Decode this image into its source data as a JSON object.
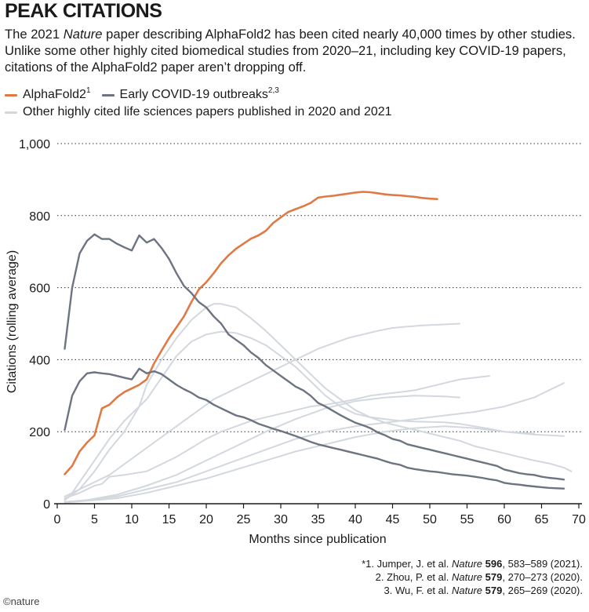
{
  "header": {
    "title": "PEAK CITATIONS",
    "subtitle_before": "The 2021 ",
    "subtitle_italic": "Nature",
    "subtitle_after": " paper describing AlphaFold2 has been cited nearly 40,000 times by other studies. Unlike some other highly cited biomedical studies from 2020–21, including key COVID-19 papers, citations of the AlphaFold2 paper aren’t dropping off."
  },
  "legend": {
    "alphafold": {
      "label": "AlphaFold2",
      "sup": "1"
    },
    "covid": {
      "label": "Early COVID-19 outbreaks",
      "sup": "2,3"
    },
    "other": {
      "label": "Other highly cited life sciences papers published in 2020 and 2021"
    }
  },
  "colors": {
    "alphafold": "#e07a45",
    "covid": "#6d7481",
    "other": "#d3d8de",
    "grid": "#333333",
    "axis": "#1a1a1a"
  },
  "chart_data": {
    "type": "line",
    "xlabel": "Months since publication",
    "ylabel": "Citations (rolling average)",
    "xlim": [
      0,
      70
    ],
    "ylim": [
      0,
      1000
    ],
    "xticks": [
      0,
      5,
      10,
      15,
      20,
      25,
      30,
      35,
      40,
      45,
      50,
      55,
      60,
      65,
      70
    ],
    "yticks": [
      0,
      200,
      400,
      600,
      800,
      1000
    ],
    "ytick_labels": [
      "0",
      "200",
      "400",
      "600",
      "800",
      "1,000"
    ],
    "grid": "horizontal dotted",
    "series": [
      {
        "name": "Other highly cited life sciences papers published in 2020 and 2021",
        "group": "other",
        "x": [
          1,
          3,
          5,
          7,
          9,
          11,
          13,
          15,
          17,
          19,
          21,
          23,
          25,
          27,
          29,
          31,
          33,
          35,
          37,
          39,
          41,
          43,
          45,
          47,
          49,
          51,
          53,
          54
        ],
        "y": [
          20,
          40,
          60,
          80,
          110,
          140,
          170,
          200,
          230,
          260,
          290,
          310,
          330,
          350,
          370,
          390,
          410,
          430,
          445,
          460,
          470,
          480,
          488,
          492,
          495,
          497,
          499,
          500
        ]
      },
      {
        "name": "Other highly cited life sciences papers published in 2020 and 2021",
        "group": "other",
        "x": [
          1,
          2,
          3,
          5,
          7,
          9,
          11,
          12,
          14,
          16,
          18,
          20,
          21,
          22,
          24,
          26,
          28,
          30,
          32,
          34,
          36,
          38,
          40,
          42,
          44,
          46,
          48,
          50,
          52,
          54,
          56,
          58,
          60,
          62,
          64,
          66,
          68,
          69
        ],
        "y": [
          10,
          30,
          60,
          120,
          180,
          230,
          270,
          330,
          400,
          460,
          510,
          545,
          555,
          555,
          545,
          515,
          480,
          440,
          400,
          360,
          320,
          290,
          260,
          240,
          225,
          215,
          205,
          195,
          185,
          175,
          160,
          150,
          140,
          130,
          120,
          112,
          100,
          90
        ]
      },
      {
        "name": "Other highly cited life sciences papers published in 2020 and 2021",
        "group": "other",
        "x": [
          1,
          3,
          5,
          7,
          9,
          11,
          12,
          14,
          16,
          18,
          20,
          22,
          24,
          26,
          28,
          30,
          32,
          34,
          36,
          38,
          40,
          42,
          44,
          46,
          48,
          50,
          52,
          54,
          56,
          58,
          60,
          62,
          64,
          66,
          68
        ],
        "y": [
          10,
          40,
          90,
          150,
          200,
          270,
          290,
          350,
          410,
          450,
          470,
          478,
          474,
          460,
          440,
          410,
          380,
          340,
          300,
          270,
          250,
          240,
          235,
          230,
          228,
          227,
          226,
          222,
          215,
          208,
          200,
          196,
          192,
          190,
          188
        ]
      },
      {
        "name": "Other highly cited life sciences papers published in 2020 and 2021",
        "group": "other",
        "x": [
          1,
          3,
          5,
          6,
          7,
          9,
          12,
          14,
          16,
          18,
          20,
          22,
          24,
          26,
          28,
          30,
          32,
          34,
          36,
          38,
          40,
          42,
          44,
          46,
          48,
          50,
          52,
          54,
          56,
          58
        ],
        "y": [
          15,
          30,
          50,
          55,
          75,
          80,
          90,
          110,
          130,
          155,
          180,
          200,
          215,
          230,
          240,
          250,
          260,
          270,
          275,
          282,
          290,
          300,
          305,
          310,
          315,
          325,
          335,
          345,
          350,
          355
        ]
      },
      {
        "name": "Other highly cited life sciences papers published in 2020 and 2021",
        "group": "other",
        "x": [
          1,
          4,
          8,
          12,
          16,
          20,
          24,
          28,
          32,
          36,
          40,
          44,
          48,
          52,
          56,
          60,
          64,
          68
        ],
        "y": [
          5,
          10,
          20,
          40,
          60,
          90,
          120,
          150,
          180,
          200,
          215,
          225,
          235,
          245,
          255,
          270,
          295,
          335
        ]
      },
      {
        "name": "Other highly cited life sciences papers published in 2020 and 2021",
        "group": "other",
        "x": [
          1,
          4,
          8,
          12,
          16,
          20,
          24,
          28,
          32,
          36,
          40,
          44,
          48,
          52,
          54
        ],
        "y": [
          5,
          10,
          25,
          50,
          80,
          120,
          160,
          200,
          235,
          265,
          285,
          295,
          300,
          298,
          295
        ]
      },
      {
        "name": "Other highly cited life sciences papers published in 2020 and 2021",
        "group": "other",
        "x": [
          1,
          4,
          8,
          12,
          16,
          20,
          24,
          28,
          32,
          36,
          40,
          44,
          48,
          52,
          56,
          60,
          64
        ],
        "y": [
          3,
          8,
          15,
          30,
          50,
          70,
          95,
          120,
          145,
          165,
          185,
          200,
          210,
          215,
          210,
          200,
          195
        ]
      },
      {
        "name": "AlphaFold2",
        "group": "alphafold",
        "x": [
          1,
          2,
          3,
          4,
          5,
          6,
          7,
          8,
          9,
          10,
          11,
          12,
          13,
          14,
          15,
          16,
          17,
          18,
          19,
          20,
          21,
          22,
          23,
          24,
          25,
          26,
          27,
          28,
          29,
          30,
          31,
          32,
          33,
          34,
          35,
          36,
          37,
          38,
          39,
          40,
          41,
          42,
          43,
          44,
          45,
          46,
          47,
          48,
          49,
          50,
          51
        ],
        "y": [
          82,
          105,
          145,
          170,
          190,
          265,
          275,
          295,
          310,
          320,
          330,
          345,
          390,
          425,
          460,
          490,
          520,
          560,
          595,
          615,
          640,
          668,
          690,
          708,
          722,
          736,
          745,
          758,
          780,
          795,
          810,
          818,
          826,
          835,
          850,
          853,
          855,
          858,
          861,
          864,
          866,
          865,
          862,
          859,
          857,
          856,
          854,
          852,
          849,
          847,
          846
        ]
      },
      {
        "name": "Early COVID-19 outbreaks",
        "group": "covid",
        "x": [
          1,
          2,
          3,
          4,
          5,
          6,
          7,
          8,
          9,
          10,
          11,
          12,
          13,
          14,
          15,
          16,
          17,
          18,
          19,
          20,
          21,
          22,
          23,
          24,
          25,
          26,
          27,
          28,
          29,
          30,
          31,
          32,
          33,
          34,
          35,
          36,
          37,
          38,
          39,
          40,
          41,
          42,
          43,
          44,
          45,
          46,
          47,
          48,
          49,
          50,
          51,
          52,
          53,
          54,
          55,
          56,
          57,
          58,
          59,
          60,
          61,
          62,
          63,
          64,
          65,
          66,
          67,
          68
        ],
        "y": [
          430,
          600,
          695,
          730,
          748,
          735,
          735,
          722,
          712,
          703,
          745,
          725,
          735,
          710,
          680,
          640,
          605,
          585,
          560,
          545,
          520,
          500,
          470,
          455,
          440,
          420,
          405,
          385,
          370,
          355,
          340,
          325,
          315,
          300,
          280,
          270,
          258,
          246,
          235,
          225,
          218,
          210,
          198,
          190,
          180,
          175,
          165,
          160,
          155,
          150,
          145,
          140,
          135,
          130,
          125,
          120,
          115,
          110,
          105,
          95,
          90,
          85,
          82,
          80,
          75,
          72,
          70,
          67
        ]
      },
      {
        "name": "Early COVID-19 outbreaks",
        "group": "covid",
        "x": [
          1,
          2,
          3,
          4,
          5,
          6,
          7,
          8,
          9,
          10,
          11,
          12,
          13,
          14,
          15,
          16,
          17,
          18,
          19,
          20,
          21,
          22,
          23,
          24,
          25,
          26,
          27,
          28,
          29,
          30,
          31,
          32,
          33,
          34,
          35,
          36,
          37,
          38,
          39,
          40,
          41,
          42,
          43,
          44,
          45,
          46,
          47,
          48,
          49,
          50,
          51,
          52,
          53,
          54,
          55,
          56,
          57,
          58,
          59,
          60,
          61,
          62,
          63,
          64,
          65,
          66,
          67,
          68
        ],
        "y": [
          205,
          300,
          340,
          362,
          365,
          362,
          360,
          355,
          350,
          345,
          375,
          362,
          368,
          360,
          345,
          330,
          318,
          308,
          295,
          288,
          275,
          265,
          255,
          245,
          240,
          232,
          222,
          215,
          208,
          202,
          195,
          188,
          180,
          172,
          165,
          160,
          155,
          150,
          145,
          140,
          135,
          130,
          125,
          118,
          112,
          108,
          100,
          96,
          93,
          90,
          88,
          85,
          82,
          80,
          78,
          75,
          72,
          68,
          65,
          58,
          55,
          53,
          50,
          48,
          46,
          44,
          43,
          42
        ]
      }
    ]
  },
  "footnotes": [
    {
      "pre": "*1. Jumper, J. et al. ",
      "journal": "Nature",
      "vol": "596",
      "post": ", 583–589 (2021)."
    },
    {
      "pre": "2. Zhou, P. et al. ",
      "journal": "Nature",
      "vol": "579",
      "post": ", 270–273 (2020)."
    },
    {
      "pre": "3. Wu, F. et al. ",
      "journal": "Nature",
      "vol": "579",
      "post": ", 265–269 (2020)."
    }
  ],
  "credit": "©nature"
}
